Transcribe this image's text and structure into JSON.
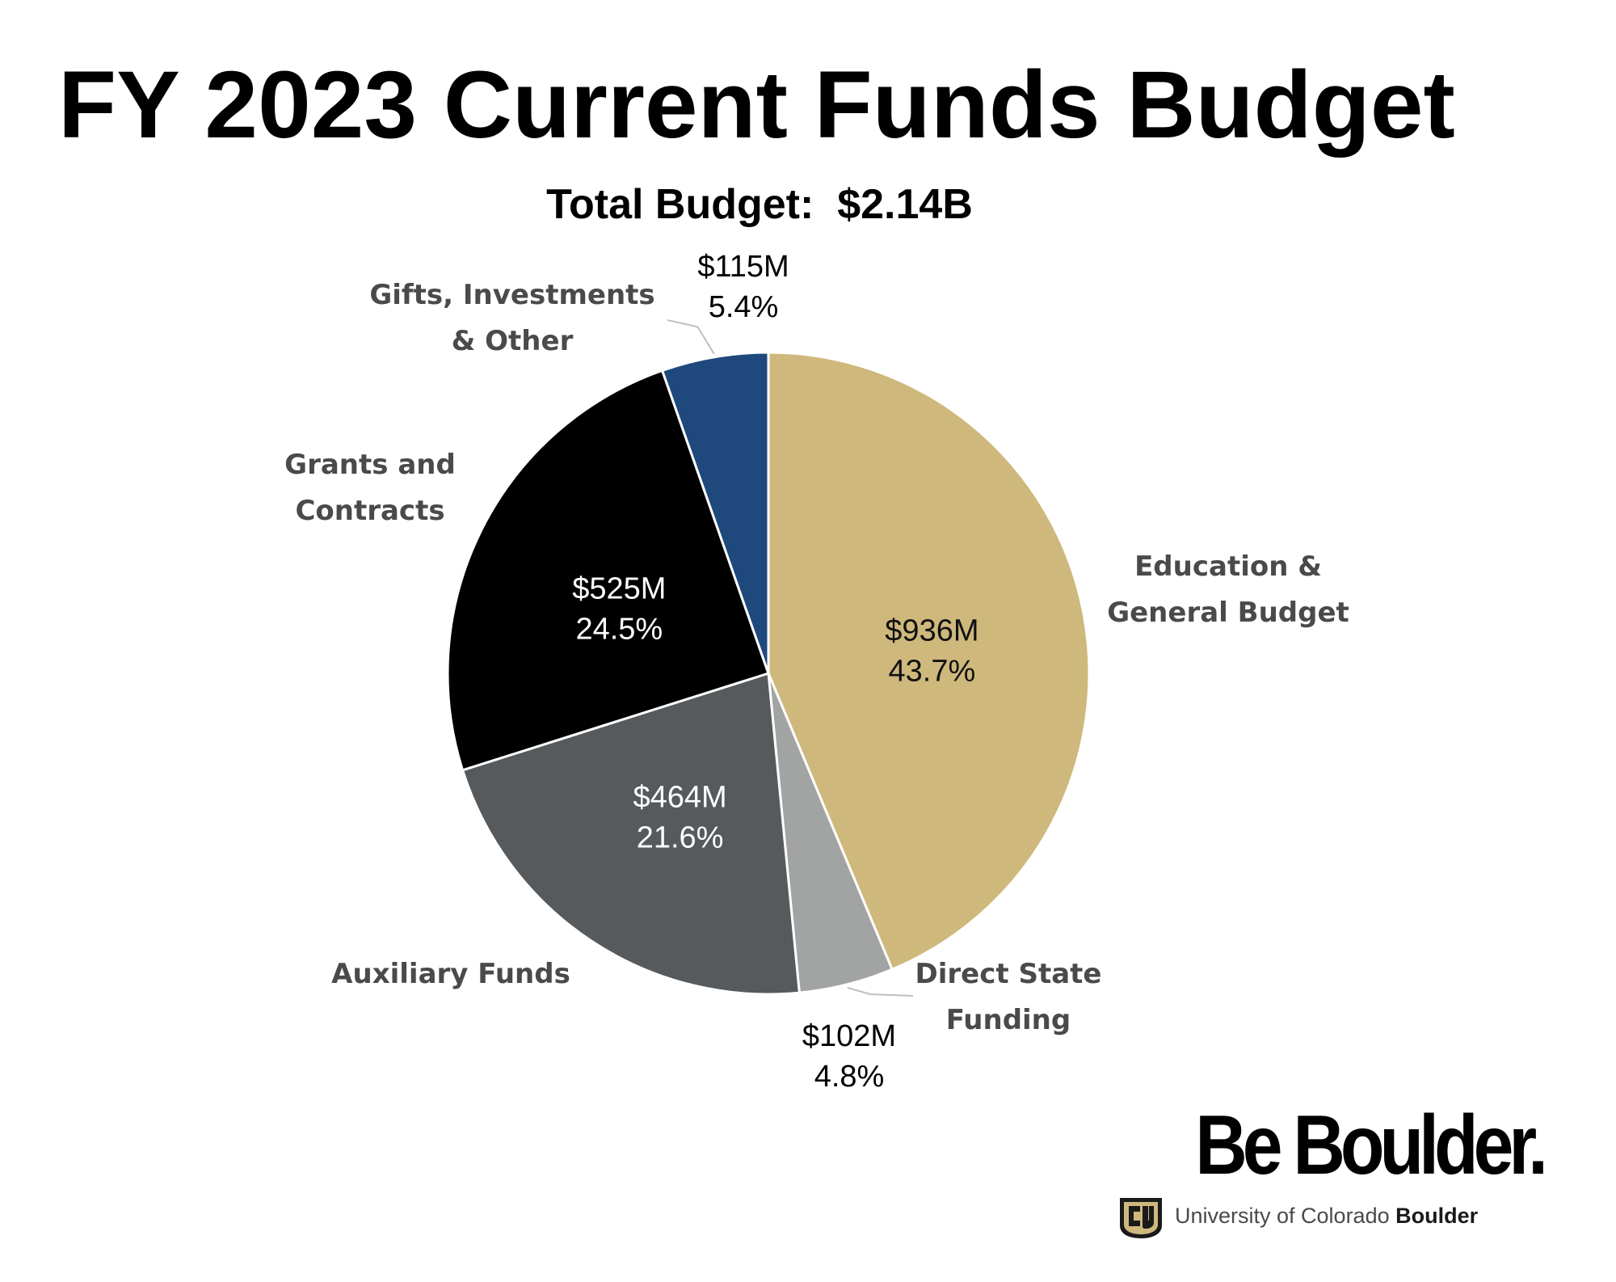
{
  "chart_data": {
    "type": "pie",
    "title": "FY 2023 Current Funds Budget",
    "subtitle": "Total Budget:  $2.14B",
    "slices": [
      {
        "label": "Education & General Budget",
        "label_lines": [
          "Education &",
          "General Budget"
        ],
        "value": 936,
        "value_label": "$936M",
        "percent": 43.7,
        "percent_label": "43.7%",
        "color": "#CFB87C"
      },
      {
        "label": "Direct State Funding",
        "label_lines": [
          "Direct State",
          "Funding"
        ],
        "value": 102,
        "value_label": "$102M",
        "percent": 4.8,
        "percent_label": "4.8%",
        "color": "#A2A4A3"
      },
      {
        "label": "Auxiliary Funds",
        "label_lines": [
          "Auxiliary Funds"
        ],
        "value": 464,
        "value_label": "$464M",
        "percent": 21.6,
        "percent_label": "21.6%",
        "color": "#565A5C"
      },
      {
        "label": "Grants and Contracts",
        "label_lines": [
          "Grants and",
          "Contracts"
        ],
        "value": 525,
        "value_label": "$525M",
        "percent": 24.5,
        "percent_label": "24.5%",
        "color": "#000000"
      },
      {
        "label": "Gifts, Investments & Other",
        "label_lines": [
          "Gifts, Investments",
          "& Other"
        ],
        "value": 115,
        "value_label": "$115M",
        "percent": 5.4,
        "percent_label": "5.4%",
        "color": "#1F497D"
      }
    ],
    "start_angle": "12 o'clock",
    "direction": "clockwise",
    "legend": "none"
  },
  "logo": {
    "wordmark": "Be Boulder.",
    "university": "University of Colorado ",
    "campus": "Boulder",
    "colors": {
      "gold": "#CFB87C",
      "black": "#000000"
    }
  }
}
